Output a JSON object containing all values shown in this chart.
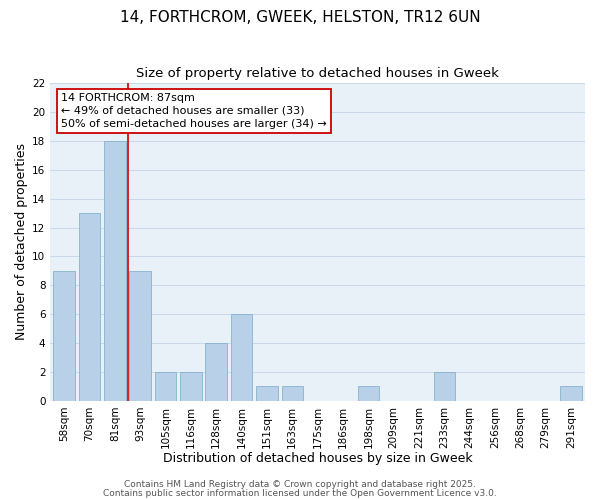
{
  "title": "14, FORTHCROM, GWEEK, HELSTON, TR12 6UN",
  "subtitle": "Size of property relative to detached houses in Gweek",
  "xlabel": "Distribution of detached houses by size in Gweek",
  "ylabel": "Number of detached properties",
  "bar_color": "#b8d0e8",
  "bar_edgecolor": "#7aaac8",
  "background_color": "#ffffff",
  "plot_bg_color": "#e8f0f8",
  "grid_color": "#c8d8e8",
  "categories": [
    "58sqm",
    "70sqm",
    "81sqm",
    "93sqm",
    "105sqm",
    "116sqm",
    "128sqm",
    "140sqm",
    "151sqm",
    "163sqm",
    "175sqm",
    "186sqm",
    "198sqm",
    "209sqm",
    "221sqm",
    "233sqm",
    "244sqm",
    "256sqm",
    "268sqm",
    "279sqm",
    "291sqm"
  ],
  "values": [
    9,
    13,
    18,
    9,
    2,
    2,
    4,
    6,
    1,
    1,
    0,
    0,
    1,
    0,
    0,
    2,
    0,
    0,
    0,
    0,
    1
  ],
  "ylim": [
    0,
    22
  ],
  "yticks": [
    0,
    2,
    4,
    6,
    8,
    10,
    12,
    14,
    16,
    18,
    20,
    22
  ],
  "vline_index": 2,
  "vline_color": "#cc0000",
  "annotation_text": "14 FORTHCROM: 87sqm\n← 49% of detached houses are smaller (33)\n50% of semi-detached houses are larger (34) →",
  "annotation_box_color": "#ffffff",
  "annotation_box_edgecolor": "#cc0000",
  "footer_line1": "Contains HM Land Registry data © Crown copyright and database right 2025.",
  "footer_line2": "Contains public sector information licensed under the Open Government Licence v3.0.",
  "title_fontsize": 11,
  "subtitle_fontsize": 9.5,
  "axis_label_fontsize": 9,
  "tick_fontsize": 7.5,
  "annotation_fontsize": 8,
  "footer_fontsize": 6.5
}
